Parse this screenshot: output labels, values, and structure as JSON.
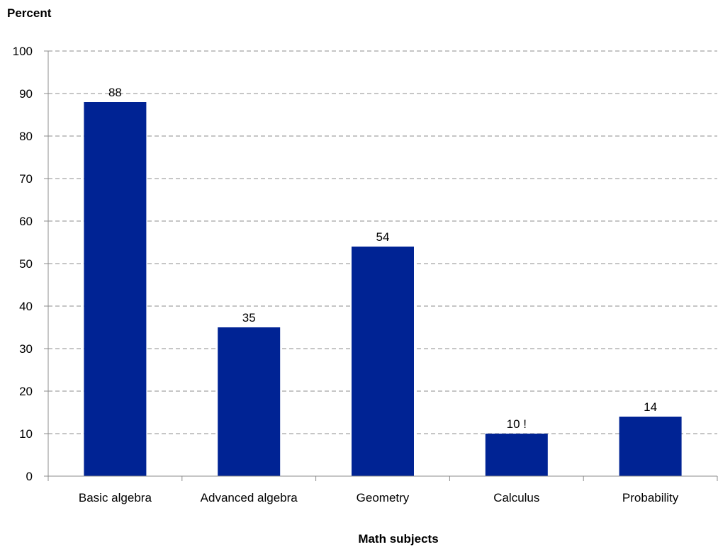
{
  "chart_data": {
    "type": "bar",
    "ylabel": "Percent",
    "xlabel": "Math subjects",
    "ylim": [
      0,
      100
    ],
    "yticks": [
      0,
      10,
      20,
      30,
      40,
      50,
      60,
      70,
      80,
      90,
      100
    ],
    "grid": "horizontal-dashed",
    "categories": [
      "Basic algebra",
      "Advanced algebra",
      "Geometry",
      "Calculus",
      "Probability"
    ],
    "values": [
      88,
      35,
      54,
      10,
      14
    ],
    "value_labels": [
      "88",
      "35",
      "54",
      "10 !",
      "14"
    ],
    "colors": {
      "bar": "#002394",
      "grid": "#8c8c8c",
      "axis": "#8c8c8c"
    }
  }
}
